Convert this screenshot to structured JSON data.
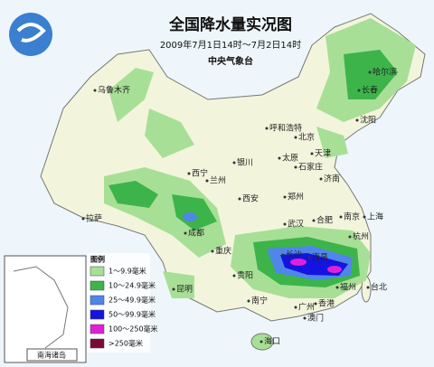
{
  "header": {
    "title": "全国降水量实况图",
    "subtitle": "2009年7月1日14时～7月2日14时",
    "issuer": "中央气象台"
  },
  "legend": {
    "title": "图例",
    "items": [
      {
        "label": "1～9.9毫米",
        "color": "#a8df96"
      },
      {
        "label": "10～24.9毫米",
        "color": "#3cb44a"
      },
      {
        "label": "25～49.9毫米",
        "color": "#4f86e8"
      },
      {
        "label": "50～99.9毫米",
        "color": "#1414e0"
      },
      {
        "label": "100～250毫米",
        "color": "#e020d8"
      },
      {
        "label": ">250毫米",
        "color": "#7a0a38"
      }
    ]
  },
  "inset": {
    "label": "南海诸岛"
  },
  "cities": [
    "乌鲁木齐",
    "哈尔滨",
    "长春",
    "沈阳",
    "呼和浩特",
    "北京",
    "天津",
    "太原",
    "石家庄",
    "银川",
    "西宁",
    "兰州",
    "济南",
    "郑州",
    "西安",
    "拉萨",
    "成都",
    "武汉",
    "合肥",
    "南京",
    "上海",
    "杭州",
    "重庆",
    "长沙",
    "南昌",
    "贵阳",
    "昆明",
    "福州",
    "台北",
    "南宁",
    "广州",
    "香港",
    "澳门",
    "海口"
  ]
}
